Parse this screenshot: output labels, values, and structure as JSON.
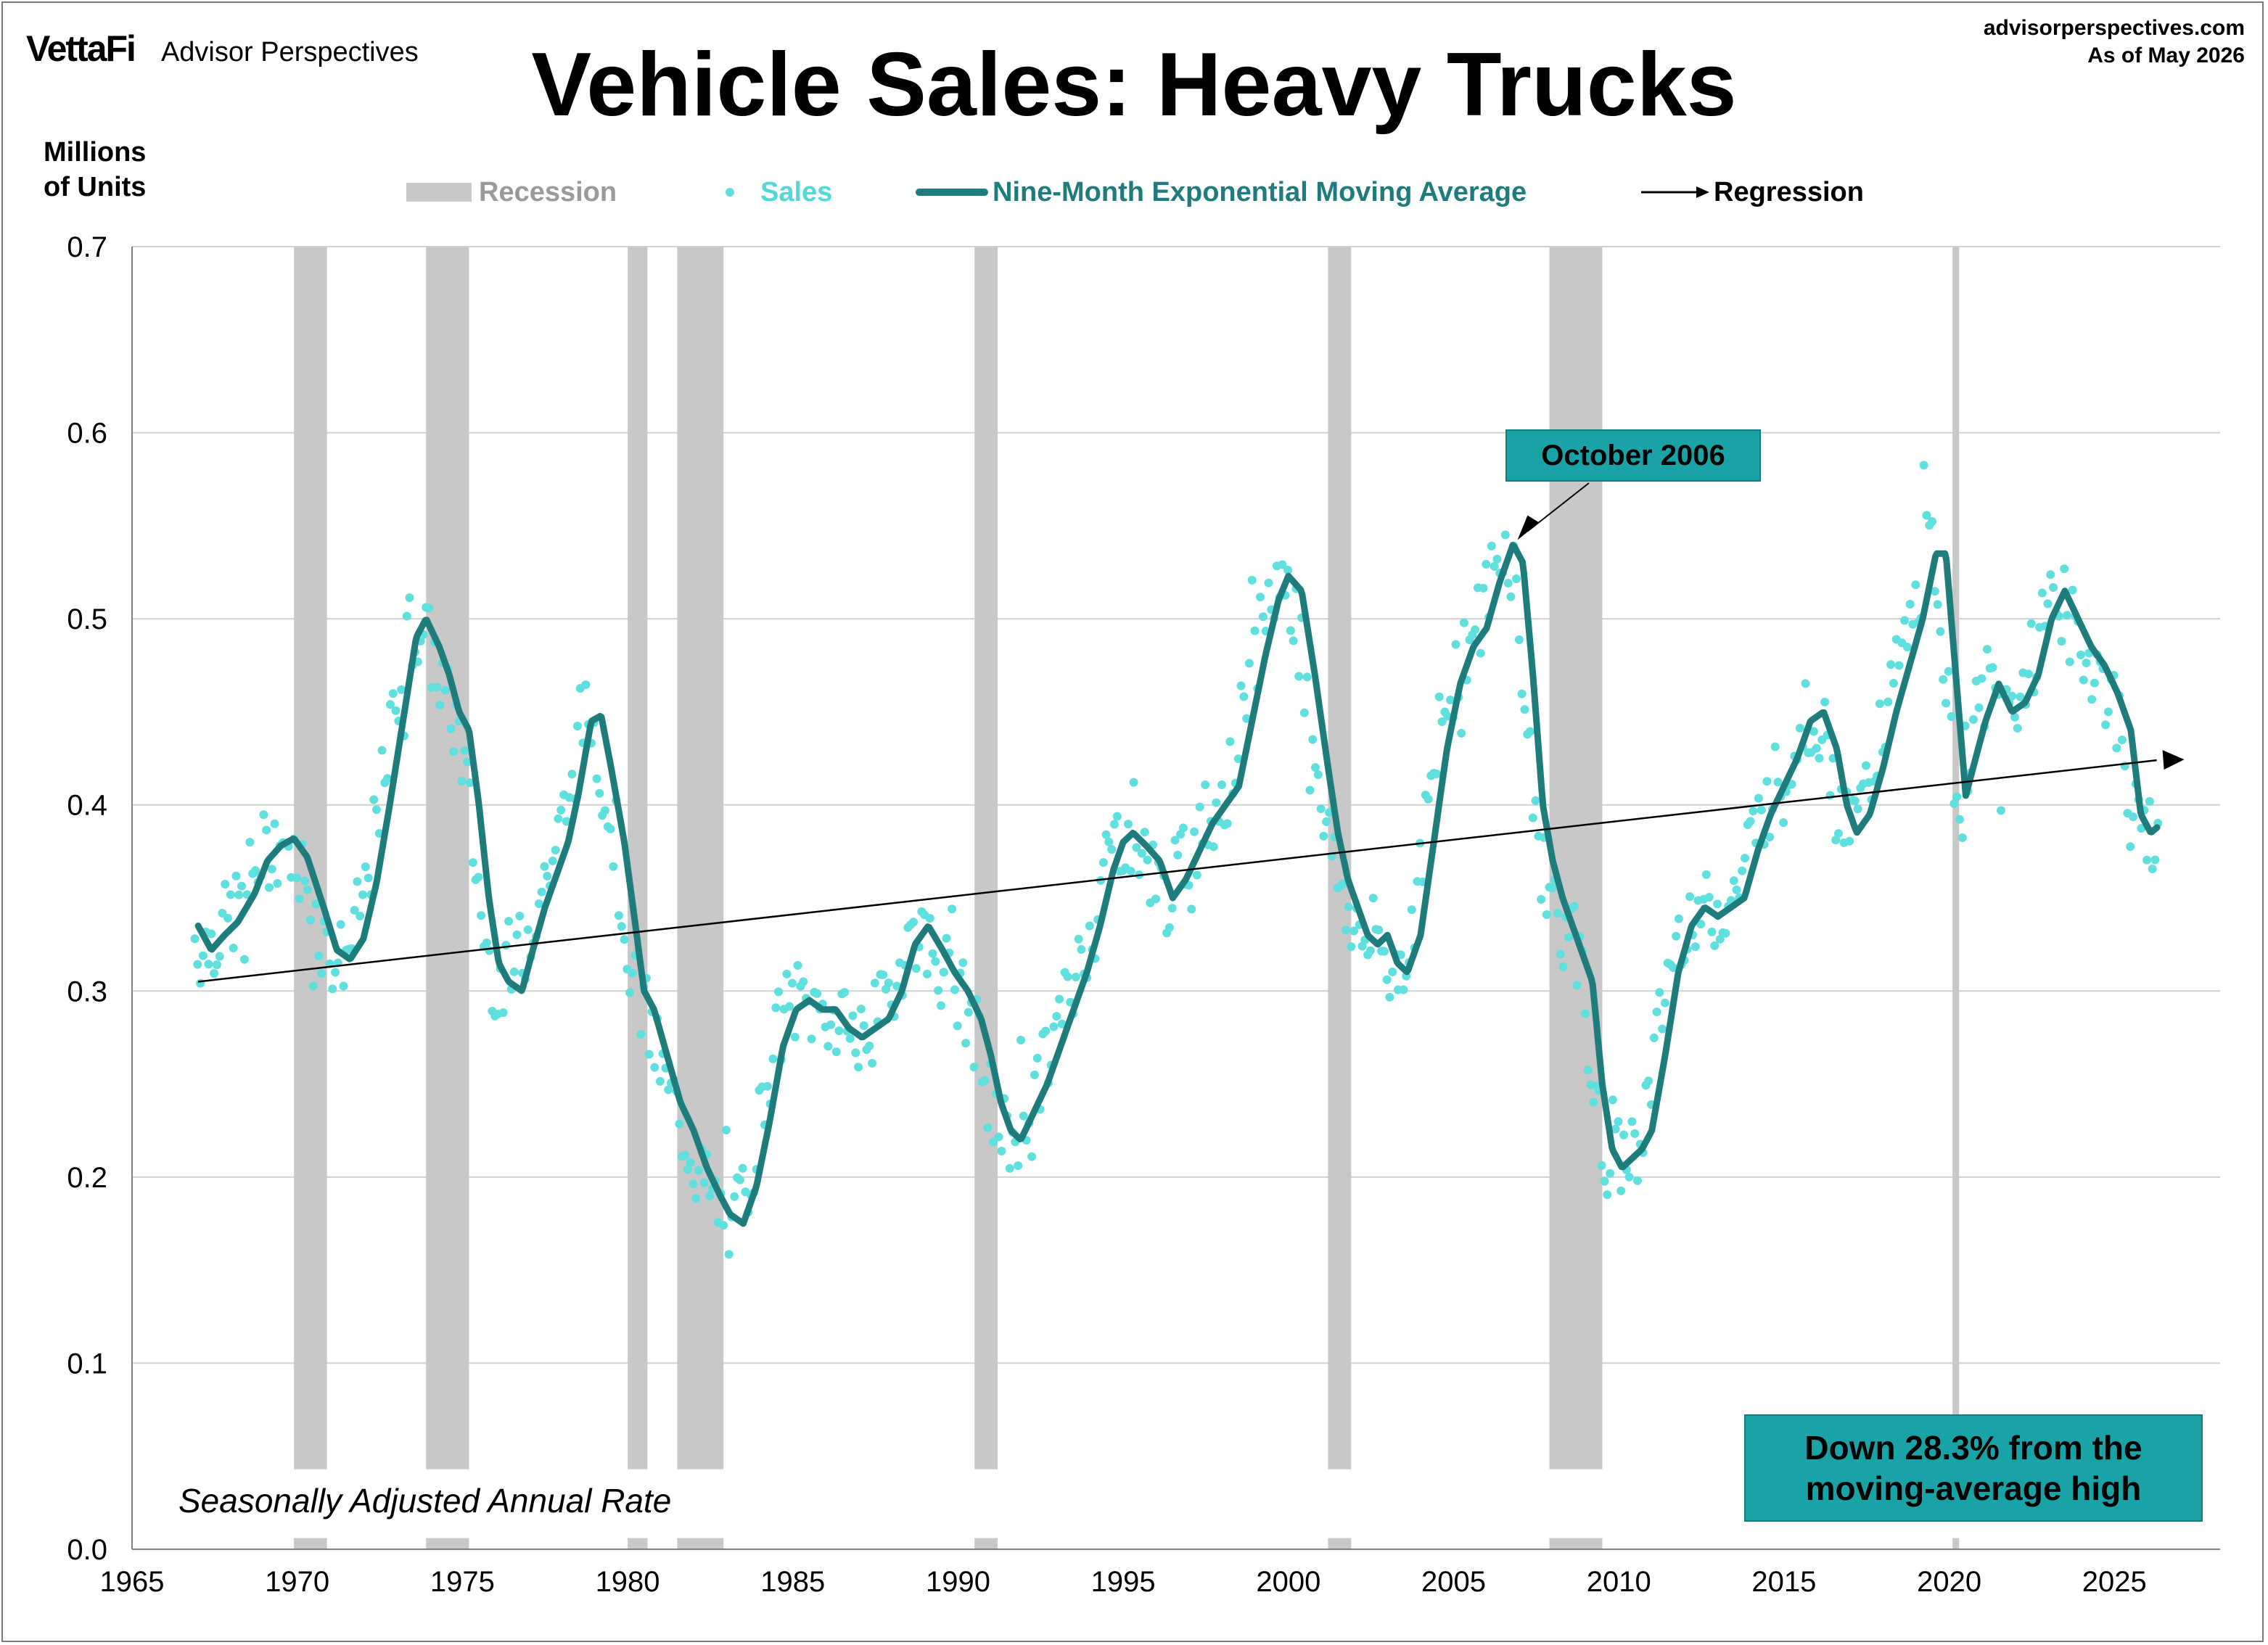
{
  "header": {
    "brand_logo": "VettaFi",
    "brand_name": "Advisor Perspectives",
    "title": "Vehicle Sales: Heavy Trucks",
    "source_url": "advisorperspectives.com",
    "as_of": "As of May 2026"
  },
  "colors": {
    "recession": "#c8c8c8",
    "sales": "#5fe0de",
    "moving_average": "#1e7c7c",
    "regression": "#000000",
    "annotation_fill": "#1aa3a6"
  },
  "chart_data": {
    "type": "line",
    "title": "Vehicle Sales: Heavy Trucks",
    "ylabel": "Millions of Units",
    "xlabel": "",
    "xlim": [
      1965,
      2028
    ],
    "ylim": [
      0.0,
      0.7
    ],
    "x_ticks": [
      "1965",
      "1970",
      "1975",
      "1980",
      "1985",
      "1990",
      "1995",
      "2000",
      "2005",
      "2010",
      "2015",
      "2020",
      "2025"
    ],
    "y_ticks": [
      "0.0",
      "0.1",
      "0.2",
      "0.3",
      "0.4",
      "0.5",
      "0.6",
      "0.7"
    ],
    "grid": "horizontal",
    "legend": [
      "Recession",
      "Sales",
      "Nine-Month Exponential Moving Average",
      "Regression"
    ],
    "legend_position": "top",
    "recessions": [
      [
        1969.9,
        1970.9
      ],
      [
        1973.9,
        1975.2
      ],
      [
        1980.0,
        1980.6
      ],
      [
        1981.5,
        1982.9
      ],
      [
        1990.5,
        1991.2
      ],
      [
        2001.2,
        2001.9
      ],
      [
        2007.9,
        2009.5
      ],
      [
        2020.1,
        2020.3
      ]
    ],
    "moving_average_anchors": [
      [
        1967.0,
        0.335
      ],
      [
        1967.4,
        0.322
      ],
      [
        1967.8,
        0.33
      ],
      [
        1968.2,
        0.337
      ],
      [
        1968.7,
        0.352
      ],
      [
        1969.1,
        0.37
      ],
      [
        1969.5,
        0.378
      ],
      [
        1969.9,
        0.382
      ],
      [
        1970.3,
        0.372
      ],
      [
        1970.8,
        0.345
      ],
      [
        1971.2,
        0.322
      ],
      [
        1971.6,
        0.317
      ],
      [
        1972.0,
        0.328
      ],
      [
        1972.4,
        0.358
      ],
      [
        1972.8,
        0.4
      ],
      [
        1973.2,
        0.445
      ],
      [
        1973.6,
        0.49
      ],
      [
        1973.9,
        0.5
      ],
      [
        1974.3,
        0.485
      ],
      [
        1974.6,
        0.47
      ],
      [
        1974.9,
        0.45
      ],
      [
        1975.2,
        0.44
      ],
      [
        1975.5,
        0.4
      ],
      [
        1975.8,
        0.35
      ],
      [
        1976.1,
        0.315
      ],
      [
        1976.4,
        0.305
      ],
      [
        1976.8,
        0.3
      ],
      [
        1977.1,
        0.32
      ],
      [
        1977.5,
        0.345
      ],
      [
        1977.9,
        0.365
      ],
      [
        1978.2,
        0.38
      ],
      [
        1978.5,
        0.405
      ],
      [
        1978.9,
        0.445
      ],
      [
        1979.2,
        0.448
      ],
      [
        1979.5,
        0.42
      ],
      [
        1979.9,
        0.38
      ],
      [
        1980.2,
        0.34
      ],
      [
        1980.5,
        0.3
      ],
      [
        1980.8,
        0.29
      ],
      [
        1981.2,
        0.265
      ],
      [
        1981.6,
        0.24
      ],
      [
        1982.0,
        0.225
      ],
      [
        1982.4,
        0.205
      ],
      [
        1982.8,
        0.19
      ],
      [
        1983.1,
        0.18
      ],
      [
        1983.5,
        0.175
      ],
      [
        1983.9,
        0.195
      ],
      [
        1984.3,
        0.23
      ],
      [
        1984.7,
        0.27
      ],
      [
        1985.1,
        0.29
      ],
      [
        1985.5,
        0.295
      ],
      [
        1985.9,
        0.29
      ],
      [
        1986.3,
        0.29
      ],
      [
        1986.7,
        0.28
      ],
      [
        1987.1,
        0.275
      ],
      [
        1987.5,
        0.28
      ],
      [
        1987.9,
        0.285
      ],
      [
        1988.3,
        0.3
      ],
      [
        1988.7,
        0.325
      ],
      [
        1989.1,
        0.335
      ],
      [
        1989.5,
        0.323
      ],
      [
        1989.9,
        0.31
      ],
      [
        1990.3,
        0.3
      ],
      [
        1990.7,
        0.285
      ],
      [
        1991.0,
        0.265
      ],
      [
        1991.3,
        0.24
      ],
      [
        1991.6,
        0.225
      ],
      [
        1991.9,
        0.22
      ],
      [
        1992.3,
        0.235
      ],
      [
        1992.7,
        0.25
      ],
      [
        1993.1,
        0.27
      ],
      [
        1993.5,
        0.29
      ],
      [
        1993.9,
        0.31
      ],
      [
        1994.3,
        0.335
      ],
      [
        1994.7,
        0.365
      ],
      [
        1995.0,
        0.38
      ],
      [
        1995.3,
        0.385
      ],
      [
        1995.7,
        0.378
      ],
      [
        1996.1,
        0.37
      ],
      [
        1996.5,
        0.35
      ],
      [
        1996.9,
        0.36
      ],
      [
        1997.3,
        0.375
      ],
      [
        1997.7,
        0.39
      ],
      [
        1998.1,
        0.4
      ],
      [
        1998.5,
        0.41
      ],
      [
        1998.9,
        0.445
      ],
      [
        1999.3,
        0.48
      ],
      [
        1999.7,
        0.51
      ],
      [
        2000.0,
        0.523
      ],
      [
        2000.4,
        0.515
      ],
      [
        2000.8,
        0.47
      ],
      [
        2001.2,
        0.42
      ],
      [
        2001.5,
        0.385
      ],
      [
        2001.8,
        0.36
      ],
      [
        2002.1,
        0.345
      ],
      [
        2002.4,
        0.33
      ],
      [
        2002.7,
        0.325
      ],
      [
        2003.0,
        0.33
      ],
      [
        2003.3,
        0.315
      ],
      [
        2003.6,
        0.31
      ],
      [
        2004.0,
        0.33
      ],
      [
        2004.4,
        0.38
      ],
      [
        2004.8,
        0.43
      ],
      [
        2005.2,
        0.465
      ],
      [
        2005.6,
        0.485
      ],
      [
        2006.0,
        0.495
      ],
      [
        2006.4,
        0.52
      ],
      [
        2006.8,
        0.54
      ],
      [
        2007.1,
        0.53
      ],
      [
        2007.4,
        0.47
      ],
      [
        2007.7,
        0.4
      ],
      [
        2008.0,
        0.37
      ],
      [
        2008.3,
        0.35
      ],
      [
        2008.6,
        0.335
      ],
      [
        2008.9,
        0.32
      ],
      [
        2009.2,
        0.305
      ],
      [
        2009.5,
        0.25
      ],
      [
        2009.8,
        0.215
      ],
      [
        2010.1,
        0.205
      ],
      [
        2010.4,
        0.21
      ],
      [
        2010.7,
        0.215
      ],
      [
        2011.0,
        0.225
      ],
      [
        2011.4,
        0.265
      ],
      [
        2011.8,
        0.31
      ],
      [
        2012.2,
        0.335
      ],
      [
        2012.6,
        0.345
      ],
      [
        2013.0,
        0.34
      ],
      [
        2013.4,
        0.345
      ],
      [
        2013.8,
        0.35
      ],
      [
        2014.2,
        0.375
      ],
      [
        2014.6,
        0.395
      ],
      [
        2015.0,
        0.41
      ],
      [
        2015.4,
        0.425
      ],
      [
        2015.8,
        0.445
      ],
      [
        2016.2,
        0.45
      ],
      [
        2016.6,
        0.43
      ],
      [
        2016.9,
        0.4
      ],
      [
        2017.2,
        0.385
      ],
      [
        2017.6,
        0.395
      ],
      [
        2018.0,
        0.42
      ],
      [
        2018.4,
        0.45
      ],
      [
        2018.8,
        0.475
      ],
      [
        2019.2,
        0.5
      ],
      [
        2019.6,
        0.535
      ],
      [
        2019.9,
        0.535
      ],
      [
        2020.2,
        0.47
      ],
      [
        2020.5,
        0.405
      ],
      [
        2020.8,
        0.425
      ],
      [
        2021.1,
        0.445
      ],
      [
        2021.5,
        0.465
      ],
      [
        2021.9,
        0.45
      ],
      [
        2022.3,
        0.455
      ],
      [
        2022.7,
        0.47
      ],
      [
        2023.1,
        0.5
      ],
      [
        2023.5,
        0.515
      ],
      [
        2023.9,
        0.5
      ],
      [
        2024.3,
        0.485
      ],
      [
        2024.7,
        0.475
      ],
      [
        2025.1,
        0.46
      ],
      [
        2025.5,
        0.44
      ],
      [
        2025.8,
        0.395
      ],
      [
        2026.1,
        0.385
      ],
      [
        2026.3,
        0.388
      ]
    ],
    "regression": {
      "x0": 1967.0,
      "y0": 0.305,
      "x1": 2026.5,
      "y1": 0.424
    },
    "sales_noise_seed": 7
  },
  "annotations": {
    "peak_label": "October 2006",
    "peak_point": {
      "x": 2006.8,
      "y": 0.54
    },
    "drop_note": "Down 28.3% from the\nmoving-average high",
    "seasonal_note": "Seasonally Adjusted Annual Rate"
  },
  "y_axis_title": "Millions\nof Units"
}
